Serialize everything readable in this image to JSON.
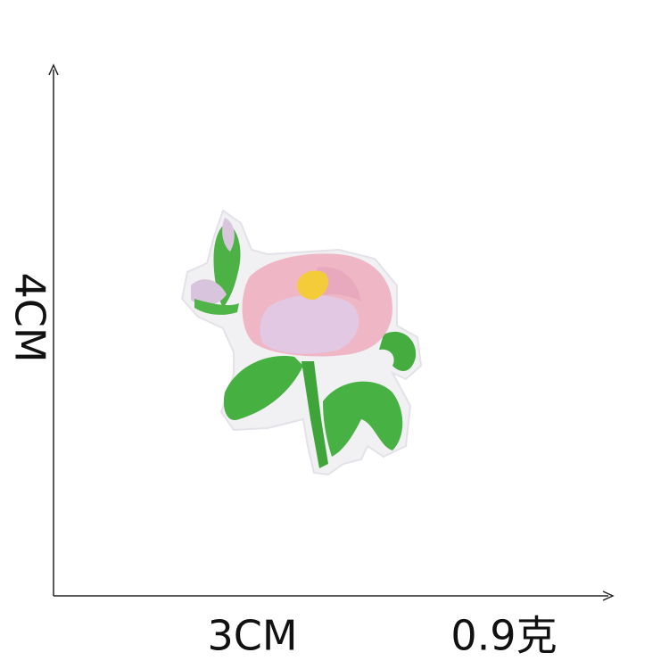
{
  "labels": {
    "height": "4CM",
    "width": "3CM",
    "weight": "0.9克"
  }
}
